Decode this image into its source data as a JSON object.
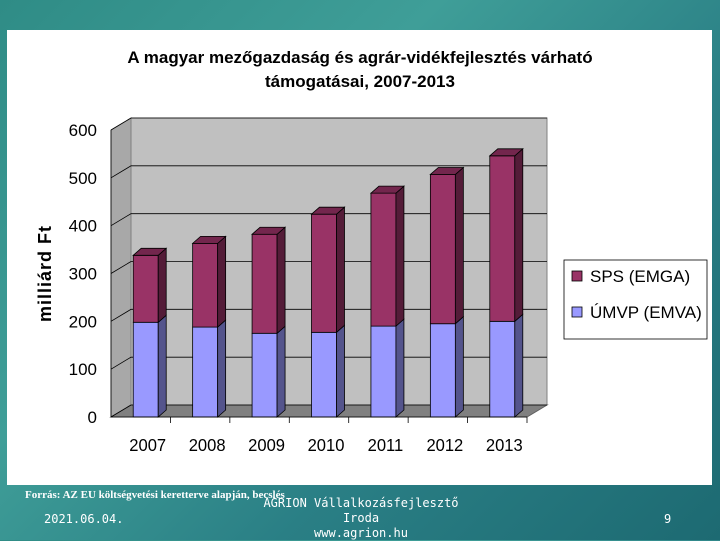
{
  "colors": {
    "sps": "#993366",
    "umvp": "#9999ff",
    "wall": "#c0c0c0",
    "floor": "#808080",
    "text": "#000000"
  },
  "chart_data": {
    "type": "bar",
    "stacked": true,
    "three_d": true,
    "title": "A magyar mezőgazdaság és agrár-vidékfejlesztés várható támogatásai, 2007-2013",
    "title_lines": [
      "A magyar mezőgazdaság és agrár-vidékfejlesztés várható",
      "támogatásai, 2007-2013"
    ],
    "xlabel": "",
    "ylabel": "milliárd Ft",
    "categories": [
      "2007",
      "2008",
      "2009",
      "2010",
      "2011",
      "2012",
      "2013"
    ],
    "series": [
      {
        "name": "ÚMVP (EMVA)",
        "values": [
          198,
          188,
          175,
          177,
          190,
          195,
          200
        ]
      },
      {
        "name": "SPS (EMGA)",
        "values": [
          140,
          175,
          207,
          247,
          278,
          312,
          346
        ]
      }
    ],
    "legend_order": [
      "SPS (EMGA)",
      "ÚMVP (EMVA)"
    ],
    "legend_position": "right",
    "ylim": [
      0,
      600
    ],
    "yticks": [
      0,
      100,
      200,
      300,
      400,
      500,
      600
    ],
    "grid": true
  },
  "footer": {
    "source": "Forrás: AZ EU költségvetési keretterve alapján, becslés",
    "date": "2021.06.04.",
    "org_line1": "AGRION Vállalkozásfejlesztő Iroda",
    "org_line2": "www.agrion.hu",
    "page_number": "9"
  }
}
